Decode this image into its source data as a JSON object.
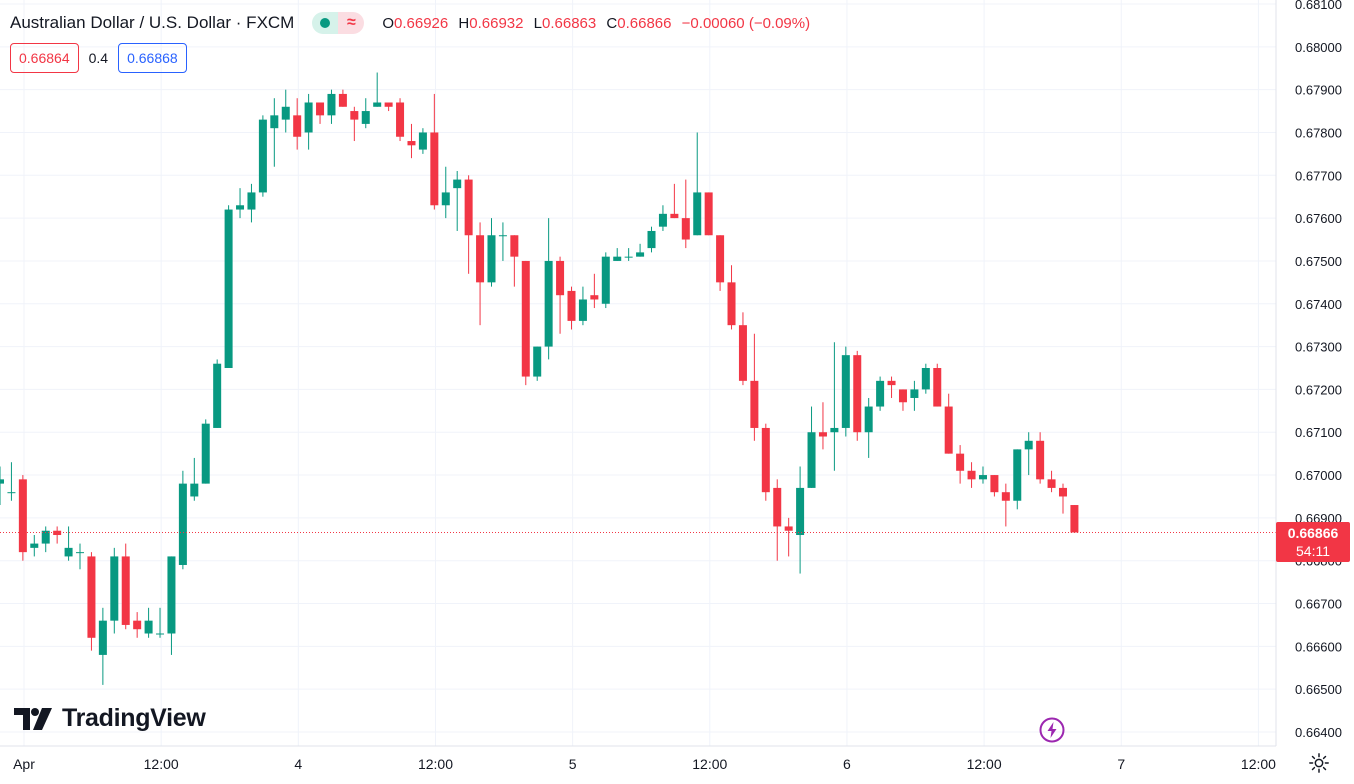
{
  "header": {
    "symbol_title": "Australian Dollar / U.S. Dollar · FXCM",
    "ohlc": {
      "o_label": "O",
      "o_value": "0.66926",
      "h_label": "H",
      "h_value": "0.66932",
      "l_label": "L",
      "l_value": "0.66863",
      "c_label": "C",
      "c_value": "0.66866",
      "change": "−0.00060 (−0.09%)"
    }
  },
  "quotes": {
    "sell": "0.66864",
    "spread": "0.4",
    "buy": "0.66868"
  },
  "price_label": {
    "price": "0.66866",
    "countdown": "54:11"
  },
  "brand": {
    "name": "TradingView"
  },
  "icons": {
    "status": "market-open-icon",
    "wave": "delayed-data-icon",
    "bolt": "lightning-icon",
    "settings": "gear-icon",
    "logo": "tradingview-logo-icon"
  },
  "colors": {
    "up": "#089981",
    "down": "#f23645",
    "grid": "#f0f3fa",
    "axis_text": "#131722"
  },
  "chart_data": {
    "type": "candlestick",
    "title": "Australian Dollar / U.S. Dollar · FXCM",
    "timeframe_note": "",
    "ylim": [
      0.6636,
      0.681
    ],
    "yticks": [
      0.681,
      0.68,
      0.679,
      0.678,
      0.677,
      0.676,
      0.675,
      0.674,
      0.673,
      0.672,
      0.671,
      0.67,
      0.669,
      0.668,
      0.667,
      0.666,
      0.665,
      0.664
    ],
    "ytick_labels": [
      "0.68100",
      "0.68000",
      "0.67900",
      "0.67800",
      "0.67700",
      "0.67600",
      "0.67500",
      "0.67400",
      "0.67300",
      "0.67200",
      "0.67100",
      "0.67000",
      "0.66900",
      "0.66800",
      "0.66700",
      "0.66600",
      "0.66500",
      "0.66400"
    ],
    "xticks": [
      {
        "label": "Apr",
        "bar": 0
      },
      {
        "label": "12:00",
        "bar": 12
      },
      {
        "label": "4",
        "bar": 24
      },
      {
        "label": "12:00",
        "bar": 36
      },
      {
        "label": "5",
        "bar": 48
      },
      {
        "label": "12:00",
        "bar": 60
      },
      {
        "label": "6",
        "bar": 72
      },
      {
        "label": "12:00",
        "bar": 84
      },
      {
        "label": "7",
        "bar": 96
      },
      {
        "label": "12:00",
        "bar": 108
      }
    ],
    "last_price": 0.66866,
    "candles": [
      [
        0.6698,
        0.6702,
        0.6693,
        0.6699
      ],
      [
        0.6696,
        0.6703,
        0.6694,
        0.6696
      ],
      [
        0.6699,
        0.67,
        0.668,
        0.6682
      ],
      [
        0.6683,
        0.6686,
        0.6681,
        0.6684
      ],
      [
        0.6684,
        0.6688,
        0.6682,
        0.6687
      ],
      [
        0.6687,
        0.6688,
        0.6684,
        0.6686
      ],
      [
        0.6681,
        0.6688,
        0.668,
        0.6683
      ],
      [
        0.6682,
        0.6684,
        0.6678,
        0.6682
      ],
      [
        0.6681,
        0.6682,
        0.6659,
        0.6662
      ],
      [
        0.6658,
        0.6669,
        0.6651,
        0.6666
      ],
      [
        0.6666,
        0.6683,
        0.6663,
        0.6681
      ],
      [
        0.6681,
        0.6684,
        0.6664,
        0.6665
      ],
      [
        0.6666,
        0.6668,
        0.6662,
        0.6664
      ],
      [
        0.6663,
        0.6669,
        0.6662,
        0.6666
      ],
      [
        0.6663,
        0.6669,
        0.6662,
        0.6663
      ],
      [
        0.6663,
        0.6681,
        0.6658,
        0.6681
      ],
      [
        0.6679,
        0.6701,
        0.6678,
        0.6698
      ],
      [
        0.6695,
        0.6704,
        0.6694,
        0.6698
      ],
      [
        0.6698,
        0.6713,
        0.6698,
        0.6712
      ],
      [
        0.6711,
        0.6727,
        0.6711,
        0.6726
      ],
      [
        0.6725,
        0.6763,
        0.6725,
        0.6762
      ],
      [
        0.6762,
        0.6767,
        0.676,
        0.6763
      ],
      [
        0.6762,
        0.6768,
        0.6759,
        0.6766
      ],
      [
        0.6766,
        0.6784,
        0.6765,
        0.6783
      ],
      [
        0.6781,
        0.6788,
        0.6772,
        0.6784
      ],
      [
        0.6783,
        0.679,
        0.678,
        0.6786
      ],
      [
        0.6784,
        0.6788,
        0.6776,
        0.6779
      ],
      [
        0.678,
        0.6789,
        0.6776,
        0.6787
      ],
      [
        0.6787,
        0.6787,
        0.6782,
        0.6784
      ],
      [
        0.6784,
        0.679,
        0.6782,
        0.6789
      ],
      [
        0.6789,
        0.679,
        0.6786,
        0.6786
      ],
      [
        0.6785,
        0.6786,
        0.6778,
        0.6783
      ],
      [
        0.6782,
        0.6788,
        0.6781,
        0.6785
      ],
      [
        0.6786,
        0.6794,
        0.6786,
        0.6787
      ],
      [
        0.6787,
        0.6787,
        0.6785,
        0.6786
      ],
      [
        0.6787,
        0.6788,
        0.6778,
        0.6779
      ],
      [
        0.6778,
        0.6782,
        0.6774,
        0.6777
      ],
      [
        0.6776,
        0.6781,
        0.6775,
        0.678
      ],
      [
        0.678,
        0.6789,
        0.6762,
        0.6763
      ],
      [
        0.6763,
        0.6772,
        0.676,
        0.6766
      ],
      [
        0.6767,
        0.6771,
        0.6757,
        0.6769
      ],
      [
        0.6769,
        0.677,
        0.6747,
        0.6756
      ],
      [
        0.6756,
        0.6759,
        0.6735,
        0.6745
      ],
      [
        0.6745,
        0.676,
        0.6744,
        0.6756
      ],
      [
        0.6756,
        0.6759,
        0.675,
        0.6756
      ],
      [
        0.6756,
        0.6756,
        0.6744,
        0.6751
      ],
      [
        0.675,
        0.675,
        0.6721,
        0.6723
      ],
      [
        0.6723,
        0.673,
        0.6722,
        0.673
      ],
      [
        0.673,
        0.676,
        0.6727,
        0.675
      ],
      [
        0.675,
        0.6751,
        0.6733,
        0.6742
      ],
      [
        0.6743,
        0.6744,
        0.6734,
        0.6736
      ],
      [
        0.6736,
        0.6744,
        0.6735,
        0.6741
      ],
      [
        0.6742,
        0.6747,
        0.6739,
        0.6741
      ],
      [
        0.674,
        0.6752,
        0.6739,
        0.6751
      ],
      [
        0.675,
        0.6753,
        0.675,
        0.6751
      ],
      [
        0.6751,
        0.6753,
        0.675,
        0.6751
      ],
      [
        0.6751,
        0.6754,
        0.6751,
        0.6752
      ],
      [
        0.6753,
        0.6758,
        0.6752,
        0.6757
      ],
      [
        0.6758,
        0.6763,
        0.6757,
        0.6761
      ],
      [
        0.6761,
        0.6768,
        0.676,
        0.676
      ],
      [
        0.676,
        0.6769,
        0.6753,
        0.6755
      ],
      [
        0.6756,
        0.678,
        0.6756,
        0.6766
      ],
      [
        0.6766,
        0.6766,
        0.6756,
        0.6756
      ],
      [
        0.6756,
        0.6756,
        0.6743,
        0.6745
      ],
      [
        0.6745,
        0.6749,
        0.6734,
        0.6735
      ],
      [
        0.6735,
        0.6738,
        0.6721,
        0.6722
      ],
      [
        0.6722,
        0.6733,
        0.6708,
        0.6711
      ],
      [
        0.6711,
        0.6712,
        0.6694,
        0.6696
      ],
      [
        0.6697,
        0.6699,
        0.668,
        0.6688
      ],
      [
        0.6688,
        0.669,
        0.6681,
        0.6687
      ],
      [
        0.6686,
        0.6702,
        0.6677,
        0.6697
      ],
      [
        0.6697,
        0.6716,
        0.6697,
        0.671
      ],
      [
        0.671,
        0.6717,
        0.6706,
        0.6709
      ],
      [
        0.671,
        0.6731,
        0.6701,
        0.6711
      ],
      [
        0.6711,
        0.673,
        0.6709,
        0.6728
      ],
      [
        0.6728,
        0.6729,
        0.6708,
        0.671
      ],
      [
        0.671,
        0.6718,
        0.6704,
        0.6716
      ],
      [
        0.6716,
        0.6723,
        0.6715,
        0.6722
      ],
      [
        0.6722,
        0.6723,
        0.6718,
        0.6721
      ],
      [
        0.672,
        0.672,
        0.6715,
        0.6717
      ],
      [
        0.6718,
        0.6722,
        0.6715,
        0.672
      ],
      [
        0.672,
        0.6726,
        0.6719,
        0.6725
      ],
      [
        0.6725,
        0.6726,
        0.6716,
        0.6716
      ],
      [
        0.6716,
        0.6719,
        0.6705,
        0.6705
      ],
      [
        0.6705,
        0.6707,
        0.6698,
        0.6701
      ],
      [
        0.6701,
        0.6703,
        0.6697,
        0.6699
      ],
      [
        0.6699,
        0.6702,
        0.6698,
        0.67
      ],
      [
        0.67,
        0.67,
        0.6695,
        0.6696
      ],
      [
        0.6696,
        0.6698,
        0.6688,
        0.6694
      ],
      [
        0.6694,
        0.6706,
        0.6692,
        0.6706
      ],
      [
        0.6706,
        0.671,
        0.67,
        0.6708
      ],
      [
        0.6708,
        0.671,
        0.6698,
        0.6699
      ],
      [
        0.6699,
        0.6701,
        0.6696,
        0.6697
      ],
      [
        0.6697,
        0.6698,
        0.6691,
        0.6695
      ],
      [
        0.6693,
        0.6693,
        0.66866,
        0.66866
      ]
    ]
  }
}
